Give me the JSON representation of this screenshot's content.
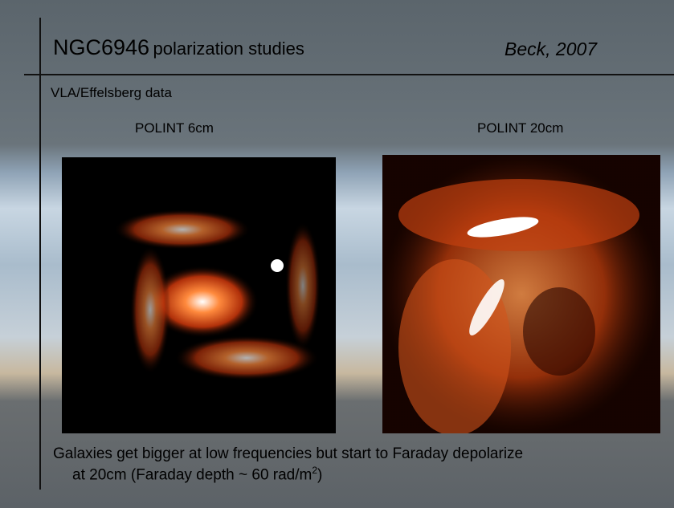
{
  "header": {
    "title_main": "NGC6946",
    "title_sub": "polarization studies",
    "author": "Beck, 2007"
  },
  "subtitle": "VLA/Effelsberg data",
  "panels": [
    {
      "label": "POLINT 6cm"
    },
    {
      "label": "POLINT 20cm"
    }
  ],
  "caption": {
    "line1": "Galaxies get bigger at low frequencies but start to Faraday depolarize",
    "line2_pre": "at 20cm (Faraday depth ~ 60 rad/m",
    "line2_sup": "2",
    "line2_post": ")"
  }
}
